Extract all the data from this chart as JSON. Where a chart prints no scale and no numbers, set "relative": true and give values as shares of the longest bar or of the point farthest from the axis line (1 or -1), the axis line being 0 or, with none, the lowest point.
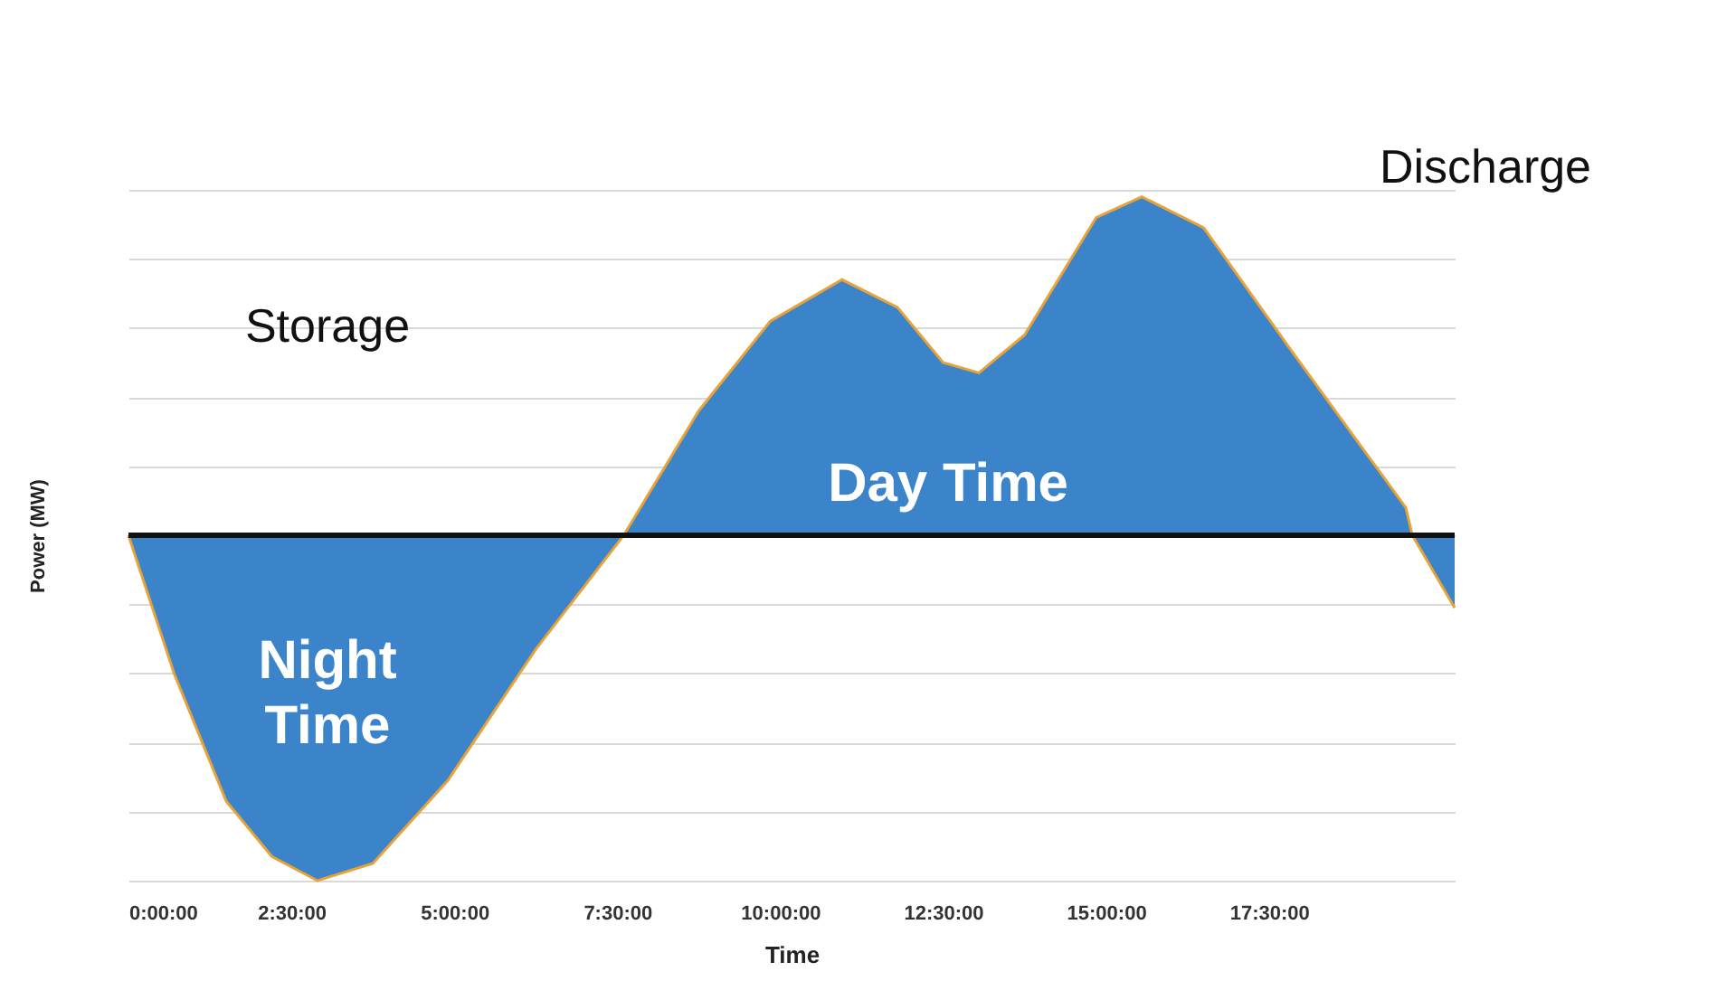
{
  "chart_data": {
    "type": "area",
    "relative": true,
    "xlabel": "Time",
    "ylabel": "Power (MW)",
    "x": [
      0,
      0.7,
      1.5,
      2.2,
      2.9,
      3.75,
      4.9,
      6.25,
      7.6,
      8.75,
      9.85,
      10.95,
      11.8,
      12.5,
      13.05,
      13.75,
      14.85,
      15.55,
      16.5,
      17.9,
      19.6,
      19.7,
      20.35
    ],
    "series": [
      {
        "color": "#3b84c9",
        "values": [
          0,
          -0.4,
          -0.77,
          -0.93,
          -1,
          -0.95,
          -0.71,
          -0.33,
          0,
          0.36,
          0.62,
          0.74,
          0.66,
          0.5,
          0.47,
          0.58,
          0.92,
          0.98,
          0.89,
          0.52,
          0.08,
          0,
          -0.21
        ]
      }
    ],
    "xlim": [
      0,
      20.35
    ],
    "xticks": [
      {
        "value": 0,
        "label": "0:00:00"
      },
      {
        "value": 2.5,
        "label": "2:30:00"
      },
      {
        "value": 5,
        "label": "5:00:00"
      },
      {
        "value": 7.5,
        "label": "7:30:00"
      },
      {
        "value": 10,
        "label": "10:00:00"
      },
      {
        "value": 12.5,
        "label": "12:30:00"
      },
      {
        "value": 15,
        "label": "15:00:00"
      },
      {
        "value": 17.5,
        "label": "17:30:00"
      }
    ],
    "grid": "y",
    "annotations": [
      "Storage",
      "Discharge",
      "Night Time",
      "Day Time"
    ]
  }
}
